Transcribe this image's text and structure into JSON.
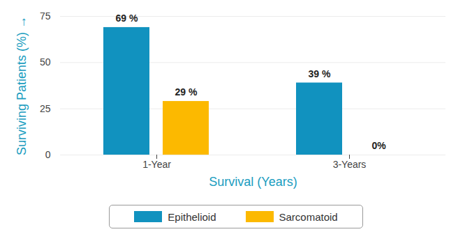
{
  "chart_data": {
    "type": "bar",
    "categories": [
      "1-Year",
      "3-Years"
    ],
    "series": [
      {
        "name": "Epithelioid",
        "color": "#1192bf",
        "values": [
          69,
          39
        ],
        "value_labels": [
          "69 %",
          "39 %"
        ]
      },
      {
        "name": "Sarcomatoid",
        "color": "#fcb900",
        "values": [
          29,
          0
        ],
        "value_labels": [
          "29 %",
          "0%"
        ]
      }
    ],
    "xlabel": "Survival (Years)",
    "ylabel": "Surviving Patients (%)",
    "ylim": [
      0,
      75
    ],
    "yticks": [
      0,
      25,
      50,
      75
    ],
    "grid": true,
    "data_labels": true,
    "legend": "bottom"
  }
}
